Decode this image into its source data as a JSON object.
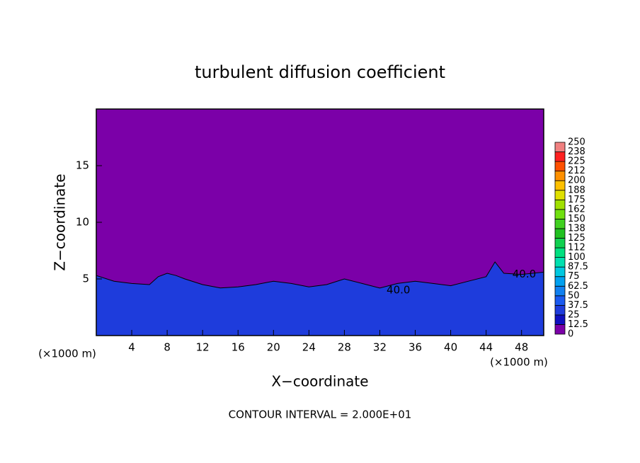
{
  "chart_data": {
    "type": "contour",
    "title": "turbulent diffusion coefficient",
    "xlabel": "X−coordinate",
    "ylabel": "Z−coordinate",
    "x_unit_left": "(×1000 m)",
    "x_unit_right": "(×1000 m)",
    "footer": "CONTOUR INTERVAL = 2.000E+01",
    "xlim": [
      0,
      50.5
    ],
    "ylim": [
      0,
      20
    ],
    "xticks": [
      4,
      8,
      12,
      16,
      20,
      24,
      28,
      32,
      36,
      40,
      44,
      48
    ],
    "yticks": [
      5,
      10,
      15
    ],
    "background_color": "#7b00a8",
    "layer": {
      "color": "#1e3cdc",
      "x": [
        0,
        2,
        4,
        6,
        7,
        8,
        9,
        10,
        12,
        14,
        16,
        18,
        20,
        22,
        24,
        26,
        28,
        30,
        32,
        34,
        36,
        38,
        40,
        42,
        44,
        45,
        46,
        48,
        50.5
      ],
      "values": [
        5.3,
        4.8,
        4.6,
        4.5,
        5.2,
        5.5,
        5.3,
        5.0,
        4.5,
        4.2,
        4.3,
        4.5,
        4.8,
        4.6,
        4.3,
        4.5,
        5.0,
        4.6,
        4.2,
        4.6,
        4.8,
        4.6,
        4.4,
        4.8,
        5.2,
        6.5,
        5.5,
        5.4,
        5.6
      ]
    },
    "contour_labels": [
      {
        "label": "40.0",
        "x": 48.3,
        "y": 5.4
      },
      {
        "label": "40.0",
        "x": 34.1,
        "y": 4.0
      }
    ],
    "colorbar": {
      "ticks": [
        0,
        12.5,
        25,
        37.5,
        50,
        62.5,
        75,
        87.5,
        100,
        112,
        125,
        138,
        150,
        162,
        175,
        188,
        200,
        212,
        225,
        238,
        250
      ],
      "colors": [
        "#7b00a8",
        "#1010c0",
        "#1e3cdc",
        "#1a5af0",
        "#1080f0",
        "#00a0f0",
        "#00c8e0",
        "#00e0b0",
        "#00e080",
        "#10d050",
        "#20c020",
        "#40d020",
        "#70e010",
        "#a0e000",
        "#e0e000",
        "#ffc000",
        "#ff9000",
        "#ff5000",
        "#ff2020",
        "#f08080"
      ]
    }
  }
}
